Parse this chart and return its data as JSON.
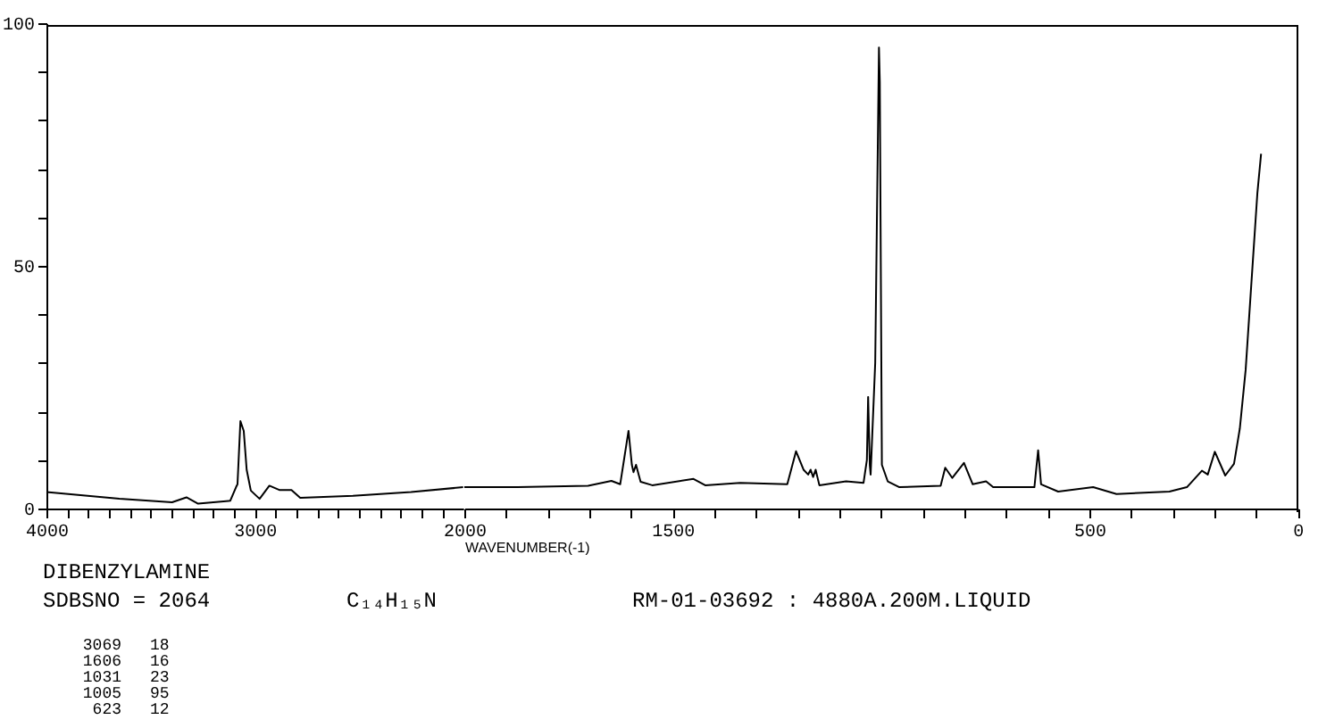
{
  "chart_data": [
    {
      "type": "line",
      "x": [
        4000,
        3650,
        3397,
        3328,
        3272,
        3118,
        3090,
        3083,
        3069,
        3053,
        3039,
        3019,
        2977,
        2930,
        2880,
        2824,
        2782,
        2529,
        2250,
        2000
      ],
      "series": [
        {
          "color": "#000000",
          "values": [
            3.4,
            2.0,
            1.3,
            2.3,
            1.0,
            1.6,
            4.4,
            5.0,
            18,
            16,
            8,
            3.7,
            2.0,
            4.7,
            3.8,
            3.8,
            2.2,
            2.6,
            3.4,
            4.4
          ]
        }
      ],
      "xlim": [
        4000,
        2000
      ],
      "xticks": [
        4000,
        {
          "value": 3900,
          "label": null
        },
        {
          "value": 3800,
          "label": null
        },
        {
          "value": 3700,
          "label": null
        },
        {
          "value": 3600,
          "label": null
        },
        {
          "value": 3500,
          "label": null
        },
        {
          "value": 3400,
          "label": null
        },
        {
          "value": 3300,
          "label": null
        },
        {
          "value": 3200,
          "label": null
        },
        {
          "value": 3100,
          "label": null
        },
        3000,
        {
          "value": 2900,
          "label": null
        },
        {
          "value": 2800,
          "label": null
        },
        {
          "value": 2700,
          "label": null
        },
        {
          "value": 2600,
          "label": null
        },
        {
          "value": 2500,
          "label": null
        },
        {
          "value": 2400,
          "label": null
        },
        {
          "value": 2300,
          "label": null
        },
        {
          "value": 2200,
          "label": null
        },
        {
          "value": 2100,
          "label": null
        }
      ],
      "ylim": [
        0,
        100
      ],
      "yticks": [
        0,
        {
          "value": 10,
          "label": null
        },
        {
          "value": 20,
          "label": null
        },
        {
          "value": 30,
          "label": null
        },
        {
          "value": 40,
          "label": null
        },
        50,
        {
          "value": 60,
          "label": null
        },
        {
          "value": 70,
          "label": null
        },
        {
          "value": 80,
          "label": null
        },
        {
          "value": 90,
          "label": null
        },
        100
      ],
      "annotations": [
        "DIBENZYLAMINE",
        "SDBSNO = 2064",
        "C₁₄H₁₅N",
        "RM-01-03692 : 4880A.200M.LIQUID",
        "3069 18",
        "1606 16",
        "1031 23",
        "1005 95",
        "623 12"
      ]
    },
    {
      "type": "line",
      "xlabel": "WAVENUMBER(-1)",
      "x": [
        2000,
        1872,
        1703,
        1647,
        1626,
        1606,
        1598,
        1594,
        1588,
        1577,
        1549,
        1450,
        1422,
        1338,
        1225,
        1204,
        1186,
        1175,
        1169,
        1163,
        1157,
        1148,
        1084,
        1042,
        1034,
        1031,
        1027,
        1025,
        1014,
        1005,
        1003,
        998,
        984,
        956,
        857,
        846,
        829,
        801,
        780,
        748,
        731,
        632,
        623,
        616,
        575,
        491,
        435,
        308,
        266,
        230,
        216,
        199,
        174,
        153,
        139,
        125,
        111,
        97,
        88
      ],
      "series": [
        {
          "color": "#000000",
          "values": [
            4.4,
            4.4,
            4.7,
            5.7,
            5.0,
            16,
            9,
            7.5,
            9,
            5.5,
            4.8,
            6.1,
            4.8,
            5.3,
            5.0,
            11.8,
            8.0,
            7.0,
            8.0,
            6.5,
            8.0,
            4.8,
            5.6,
            5.3,
            10,
            23,
            9,
            7.0,
            30,
            95,
            88,
            9,
            5.6,
            4.4,
            4.7,
            8.4,
            6.3,
            9.4,
            5.0,
            5.6,
            4.4,
            4.4,
            12,
            5.0,
            3.5,
            4.4,
            3.0,
            3.5,
            4.4,
            7.8,
            7.0,
            11.7,
            6.8,
            9.2,
            16.5,
            28.6,
            46.8,
            64.9,
            73.1
          ]
        }
      ],
      "xlim": [
        2000,
        0
      ],
      "xticks": [
        2000,
        {
          "value": 1900,
          "label": null
        },
        {
          "value": 1800,
          "label": null
        },
        {
          "value": 1700,
          "label": null
        },
        {
          "value": 1600,
          "label": null
        },
        1500,
        {
          "value": 1400,
          "label": null
        },
        {
          "value": 1300,
          "label": null
        },
        {
          "value": 1200,
          "label": null
        },
        {
          "value": 1100,
          "label": null
        },
        {
          "value": 1000,
          "label": null
        },
        {
          "value": 900,
          "label": null
        },
        {
          "value": 800,
          "label": null
        },
        {
          "value": 700,
          "label": null
        },
        {
          "value": 600,
          "label": null
        },
        500,
        {
          "value": 400,
          "label": null
        },
        {
          "value": 300,
          "label": null
        },
        {
          "value": 200,
          "label": null
        },
        {
          "value": 100,
          "label": null
        },
        0
      ],
      "ylim": [
        0,
        100
      ],
      "tick_labels": "x"
    }
  ]
}
